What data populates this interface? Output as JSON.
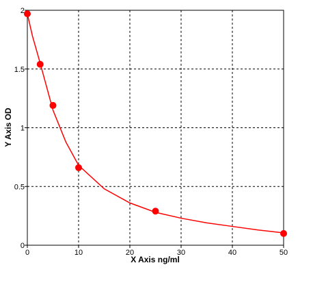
{
  "chart_data": {
    "type": "scatter",
    "xlabel": "X Axis ng/ml",
    "ylabel": "Y Axis OD",
    "xlim": [
      0,
      50
    ],
    "xticks": [
      0,
      10,
      20,
      30,
      40,
      50
    ],
    "ylim": [
      0,
      2
    ],
    "yticks": [
      0,
      0.5,
      1,
      1.5,
      2
    ],
    "grid": true,
    "series": [
      {
        "color": "#ff0000",
        "style": "markers",
        "x": [
          0,
          2.5,
          5,
          10,
          25,
          50
        ],
        "values": [
          1.97,
          1.54,
          1.19,
          0.66,
          0.29,
          0.1
        ]
      },
      {
        "color": "#ff0000",
        "style": "line",
        "x": [
          0,
          1,
          2.5,
          5,
          7.5,
          10,
          15,
          20,
          25,
          30,
          35,
          40,
          45,
          50
        ],
        "values": [
          1.97,
          1.78,
          1.55,
          1.15,
          0.88,
          0.68,
          0.48,
          0.36,
          0.28,
          0.23,
          0.19,
          0.16,
          0.13,
          0.105
        ]
      }
    ]
  }
}
